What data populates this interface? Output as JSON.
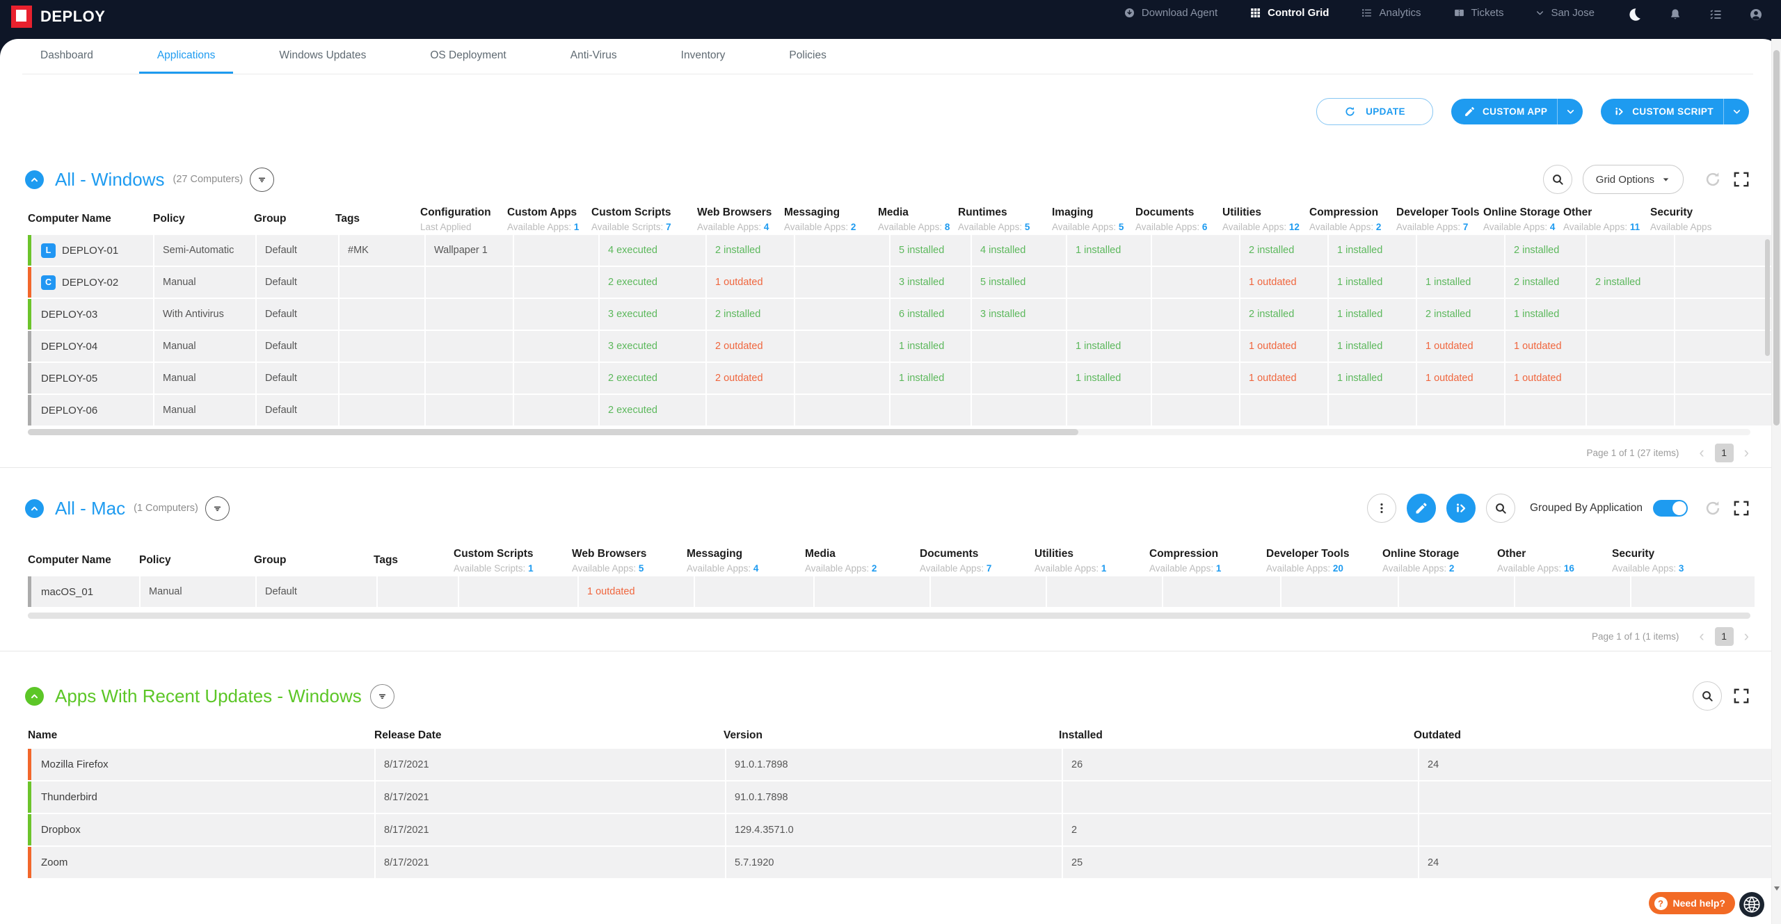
{
  "topbar": {
    "brand": "DEPLOY",
    "items": [
      {
        "label": "Download Agent",
        "icon": "cloud-download-icon"
      },
      {
        "label": "Control Grid",
        "icon": "grid-icon",
        "active": true
      },
      {
        "label": "Analytics",
        "icon": "analytics-icon"
      },
      {
        "label": "Tickets",
        "icon": "ticket-icon"
      },
      {
        "label": "San Jose",
        "icon": "chevron-down-icon"
      }
    ],
    "icons": [
      "moon-icon",
      "bell-icon",
      "checklist-icon",
      "profile-icon"
    ]
  },
  "tabs": [
    {
      "label": "Dashboard"
    },
    {
      "label": "Applications",
      "active": true
    },
    {
      "label": "Windows Updates"
    },
    {
      "label": "OS Deployment"
    },
    {
      "label": "Anti-Virus"
    },
    {
      "label": "Inventory"
    },
    {
      "label": "Policies"
    }
  ],
  "actions": {
    "update": "UPDATE",
    "custom_app": "CUSTOM APP",
    "custom_script": "CUSTOM SCRIPT"
  },
  "colors": {
    "accent": "#1E9BF0",
    "green_text": "#5CB85C",
    "orange_text": "#F0663E",
    "bar_green": "#6CC42B",
    "bar_orange": "#F2672B",
    "bar_gray": "#ABABAB",
    "section_green": "#5CC627",
    "brand_red": "#E8212E",
    "help_orange": "#F26A25"
  },
  "windows_section": {
    "title": "All - Windows",
    "count": "(27 Computers)",
    "grid_options": "Grid Options",
    "columns": [
      {
        "label": "Computer Name"
      },
      {
        "label": "Policy"
      },
      {
        "label": "Group"
      },
      {
        "label": "Tags"
      },
      {
        "label": "Configuration",
        "sub": "Last Applied",
        "n": ""
      },
      {
        "label": "Custom Apps",
        "sub": "Available Apps:",
        "n": "1"
      },
      {
        "label": "Custom Scripts",
        "sub": "Available Scripts:",
        "n": "7"
      },
      {
        "label": "Web Browsers",
        "sub": "Available Apps:",
        "n": "4"
      },
      {
        "label": "Messaging",
        "sub": "Available Apps:",
        "n": "2"
      },
      {
        "label": "Media",
        "sub": "Available Apps:",
        "n": "8"
      },
      {
        "label": "Runtimes",
        "sub": "Available Apps:",
        "n": "5"
      },
      {
        "label": "Imaging",
        "sub": "Available Apps:",
        "n": "5"
      },
      {
        "label": "Documents",
        "sub": "Available Apps:",
        "n": "6"
      },
      {
        "label": "Utilities",
        "sub": "Available Apps:",
        "n": "12"
      },
      {
        "label": "Compression",
        "sub": "Available Apps:",
        "n": "2"
      },
      {
        "label": "Developer Tools",
        "sub": "Available Apps:",
        "n": "7"
      },
      {
        "label": "Online Storage",
        "sub": "Available Apps:",
        "n": "4"
      },
      {
        "label": "Other",
        "sub": "Available Apps:",
        "n": "11"
      },
      {
        "label": "Security",
        "sub": "Available Apps",
        "n": ""
      }
    ],
    "rows": [
      {
        "bar": "green",
        "badge": "L",
        "name": "DEPLOY-01",
        "cells": [
          [
            "Semi-Automatic"
          ],
          [
            "Default"
          ],
          [
            "#MK"
          ],
          [
            "Wallpaper 1"
          ],
          [
            ""
          ],
          [
            "4 executed",
            "g"
          ],
          [
            "2 installed",
            "g"
          ],
          [
            ""
          ],
          [
            "5 installed",
            "g"
          ],
          [
            "4 installed",
            "g"
          ],
          [
            "1 installed",
            "g"
          ],
          [
            ""
          ],
          [
            "2 installed",
            "g"
          ],
          [
            "1 installed",
            "g"
          ],
          [
            ""
          ],
          [
            "2 installed",
            "g"
          ],
          [
            ""
          ],
          [
            ""
          ]
        ]
      },
      {
        "bar": "orange",
        "badge": "C",
        "name": "DEPLOY-02",
        "cells": [
          [
            "Manual"
          ],
          [
            "Default"
          ],
          [
            ""
          ],
          [
            ""
          ],
          [
            ""
          ],
          [
            "2 executed",
            "g"
          ],
          [
            "1 outdated",
            "o"
          ],
          [
            ""
          ],
          [
            "3 installed",
            "g"
          ],
          [
            "5 installed",
            "g"
          ],
          [
            ""
          ],
          [
            ""
          ],
          [
            "1 outdated",
            "o"
          ],
          [
            "1 installed",
            "g"
          ],
          [
            "1 installed",
            "g"
          ],
          [
            "2 installed",
            "g"
          ],
          [
            "2 installed",
            "g"
          ],
          [
            ""
          ]
        ]
      },
      {
        "bar": "green",
        "badge": "",
        "name": "DEPLOY-03",
        "cells": [
          [
            "With Antivirus"
          ],
          [
            "Default"
          ],
          [
            ""
          ],
          [
            ""
          ],
          [
            ""
          ],
          [
            "3 executed",
            "g"
          ],
          [
            "2 installed",
            "g"
          ],
          [
            ""
          ],
          [
            "6 installed",
            "g"
          ],
          [
            "3 installed",
            "g"
          ],
          [
            ""
          ],
          [
            ""
          ],
          [
            "2 installed",
            "g"
          ],
          [
            "1 installed",
            "g"
          ],
          [
            "2 installed",
            "g"
          ],
          [
            "1 installed",
            "g"
          ],
          [
            ""
          ],
          [
            ""
          ]
        ]
      },
      {
        "bar": "gray",
        "badge": "",
        "name": "DEPLOY-04",
        "cells": [
          [
            "Manual"
          ],
          [
            "Default"
          ],
          [
            ""
          ],
          [
            ""
          ],
          [
            ""
          ],
          [
            "3 executed",
            "g"
          ],
          [
            "2 outdated",
            "o"
          ],
          [
            ""
          ],
          [
            "1 installed",
            "g"
          ],
          [
            ""
          ],
          [
            "1 installed",
            "g"
          ],
          [
            ""
          ],
          [
            "1 outdated",
            "o"
          ],
          [
            "1 installed",
            "g"
          ],
          [
            "1 outdated",
            "o"
          ],
          [
            "1 outdated",
            "o"
          ],
          [
            ""
          ],
          [
            ""
          ]
        ]
      },
      {
        "bar": "gray",
        "badge": "",
        "name": "DEPLOY-05",
        "cells": [
          [
            "Manual"
          ],
          [
            "Default"
          ],
          [
            ""
          ],
          [
            ""
          ],
          [
            ""
          ],
          [
            "2 executed",
            "g"
          ],
          [
            "2 outdated",
            "o"
          ],
          [
            ""
          ],
          [
            "1 installed",
            "g"
          ],
          [
            ""
          ],
          [
            "1 installed",
            "g"
          ],
          [
            ""
          ],
          [
            "1 outdated",
            "o"
          ],
          [
            "1 installed",
            "g"
          ],
          [
            "1 outdated",
            "o"
          ],
          [
            "1 outdated",
            "o"
          ],
          [
            ""
          ],
          [
            ""
          ]
        ]
      },
      {
        "bar": "gray",
        "badge": "",
        "name": "DEPLOY-06",
        "cells": [
          [
            "Manual"
          ],
          [
            "Default"
          ],
          [
            ""
          ],
          [
            ""
          ],
          [
            ""
          ],
          [
            "2 executed",
            "g"
          ],
          [
            ""
          ],
          [
            ""
          ],
          [
            ""
          ],
          [
            ""
          ],
          [
            ""
          ],
          [
            ""
          ],
          [
            ""
          ],
          [
            ""
          ],
          [
            ""
          ],
          [
            ""
          ],
          [
            ""
          ],
          [
            ""
          ]
        ]
      }
    ],
    "pager": {
      "text": "Page 1 of 1 (27 items)",
      "page": "1"
    }
  },
  "mac_section": {
    "title": "All - Mac",
    "count": "(1 Computers)",
    "grouped_label": "Grouped By Application",
    "columns": [
      {
        "label": "Computer Name"
      },
      {
        "label": "Policy"
      },
      {
        "label": "Group"
      },
      {
        "label": "Tags"
      },
      {
        "label": "Custom Scripts",
        "sub": "Available Scripts:",
        "n": "1"
      },
      {
        "label": "Web Browsers",
        "sub": "Available Apps:",
        "n": "5"
      },
      {
        "label": "Messaging",
        "sub": "Available Apps:",
        "n": "4"
      },
      {
        "label": "Media",
        "sub": "Available Apps:",
        "n": "2"
      },
      {
        "label": "Documents",
        "sub": "Available Apps:",
        "n": "7"
      },
      {
        "label": "Utilities",
        "sub": "Available Apps:",
        "n": "1"
      },
      {
        "label": "Compression",
        "sub": "Available Apps:",
        "n": "1"
      },
      {
        "label": "Developer Tools",
        "sub": "Available Apps:",
        "n": "20"
      },
      {
        "label": "Online Storage",
        "sub": "Available Apps:",
        "n": "2"
      },
      {
        "label": "Other",
        "sub": "Available Apps:",
        "n": "16"
      },
      {
        "label": "Security",
        "sub": "Available Apps:",
        "n": "3"
      }
    ],
    "rows": [
      {
        "bar": "gray",
        "badge": "",
        "name": "macOS_01",
        "cells": [
          [
            "Manual"
          ],
          [
            "Default"
          ],
          [
            ""
          ],
          [
            ""
          ],
          [
            "1 outdated",
            "o"
          ],
          [
            ""
          ],
          [
            ""
          ],
          [
            ""
          ],
          [
            ""
          ],
          [
            ""
          ],
          [
            ""
          ],
          [
            ""
          ],
          [
            ""
          ],
          [
            ""
          ]
        ]
      }
    ],
    "pager": {
      "text": "Page 1 of 1 (1 items)",
      "page": "1"
    }
  },
  "apps_section": {
    "title": "Apps With Recent Updates - Windows",
    "columns": [
      "Name",
      "Release Date",
      "Version",
      "Installed",
      "Outdated"
    ],
    "rows": [
      {
        "bar": "orange",
        "name": "Mozilla Firefox",
        "release_date": "8/17/2021",
        "version": "91.0.1.7898",
        "installed": "26",
        "outdated": "24"
      },
      {
        "bar": "green",
        "name": "Thunderbird",
        "release_date": "8/17/2021",
        "version": "91.0.1.7898",
        "installed": "",
        "outdated": ""
      },
      {
        "bar": "green",
        "name": "Dropbox",
        "release_date": "8/17/2021",
        "version": "129.4.3571.0",
        "installed": "2",
        "outdated": ""
      },
      {
        "bar": "orange",
        "name": "Zoom",
        "release_date": "8/17/2021",
        "version": "5.7.1920",
        "installed": "25",
        "outdated": "24"
      }
    ]
  },
  "help": {
    "label": "Need help?"
  }
}
